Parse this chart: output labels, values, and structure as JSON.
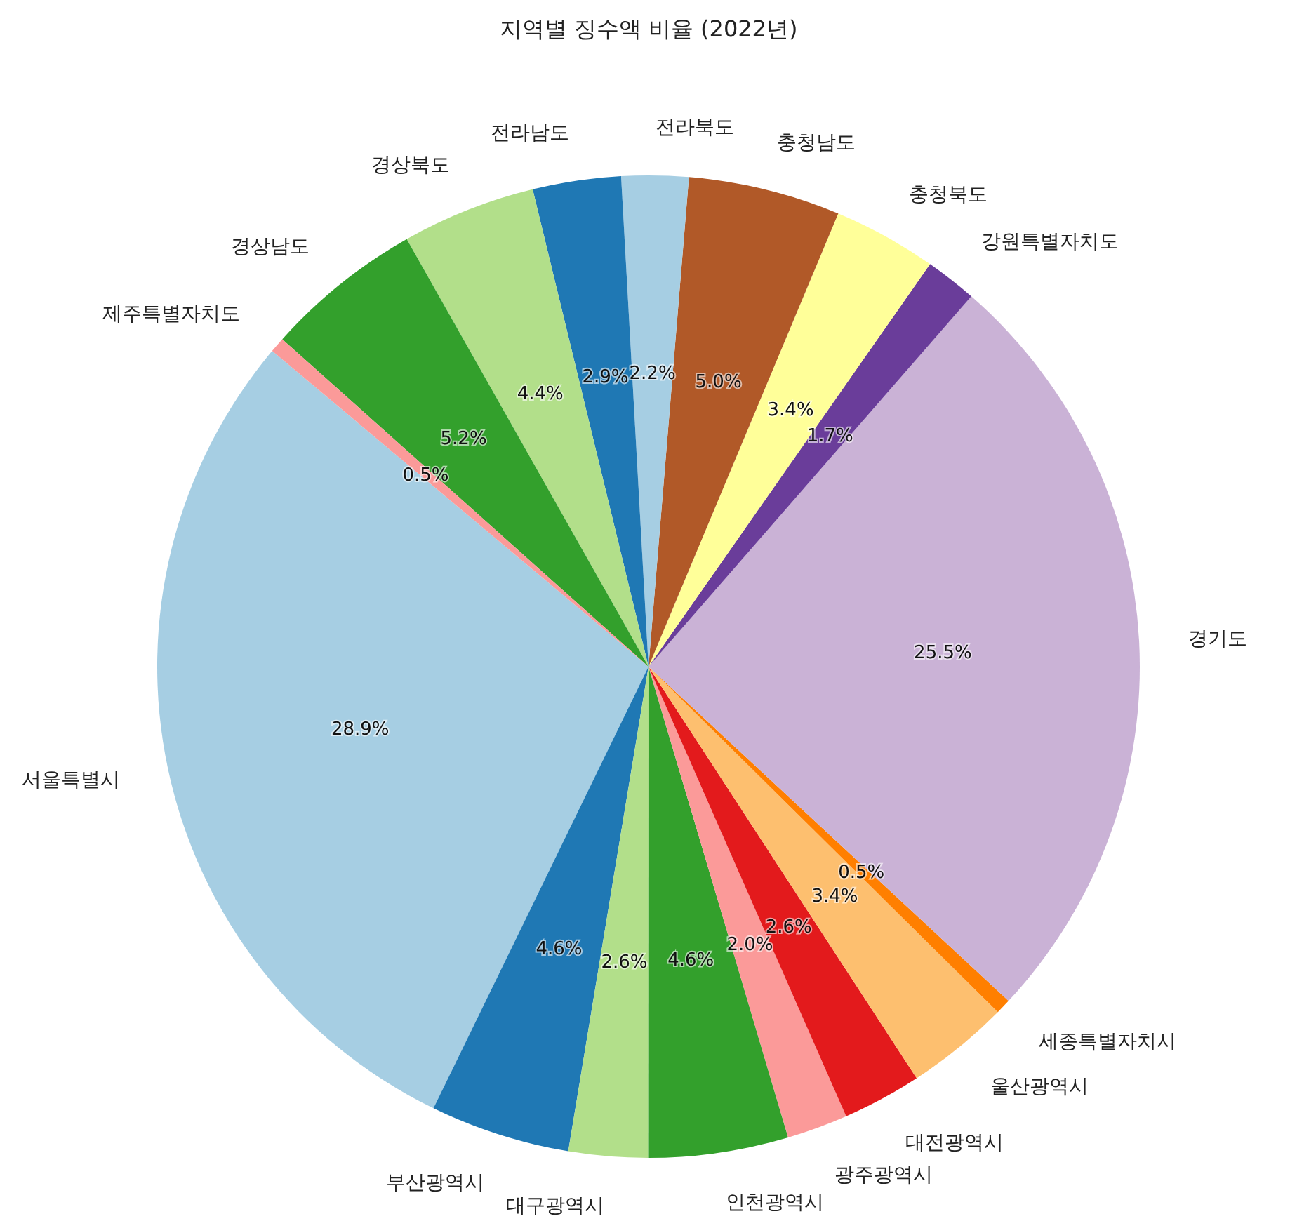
{
  "chart_data": {
    "type": "pie",
    "title": "지역별 징수액 비율 (2022년)",
    "categories": [
      "서울특별시",
      "부산광역시",
      "대구광역시",
      "인천광역시",
      "광주광역시",
      "대전광역시",
      "울산광역시",
      "세종특별자치시",
      "경기도",
      "강원특별자치도",
      "충청북도",
      "충청남도",
      "전라북도",
      "전라남도",
      "경상북도",
      "경상남도",
      "제주특별자치도"
    ],
    "values": [
      28.9,
      4.6,
      2.6,
      4.6,
      2.0,
      2.6,
      3.4,
      0.5,
      25.5,
      1.7,
      3.4,
      5.0,
      2.2,
      2.9,
      4.4,
      5.2,
      0.5
    ],
    "value_labels": [
      "28.9%",
      "4.6%",
      "2.6%",
      "4.6%",
      "2.0%",
      "2.6%",
      "3.4%",
      "0.5%",
      "25.5%",
      "1.7%",
      "3.4%",
      "5.0%",
      "2.2%",
      "2.9%",
      "4.4%",
      "5.2%",
      "0.5%"
    ],
    "colors": [
      "#a6cee3",
      "#1f78b4",
      "#b2df8a",
      "#33a02c",
      "#fb9a99",
      "#e31a1c",
      "#fdbf6f",
      "#ff7f00",
      "#cab2d6",
      "#6a3d9a",
      "#ffff99",
      "#b15928",
      "#a6cee3",
      "#1f78b4",
      "#b2df8a",
      "#33a02c",
      "#fb9a99"
    ]
  }
}
